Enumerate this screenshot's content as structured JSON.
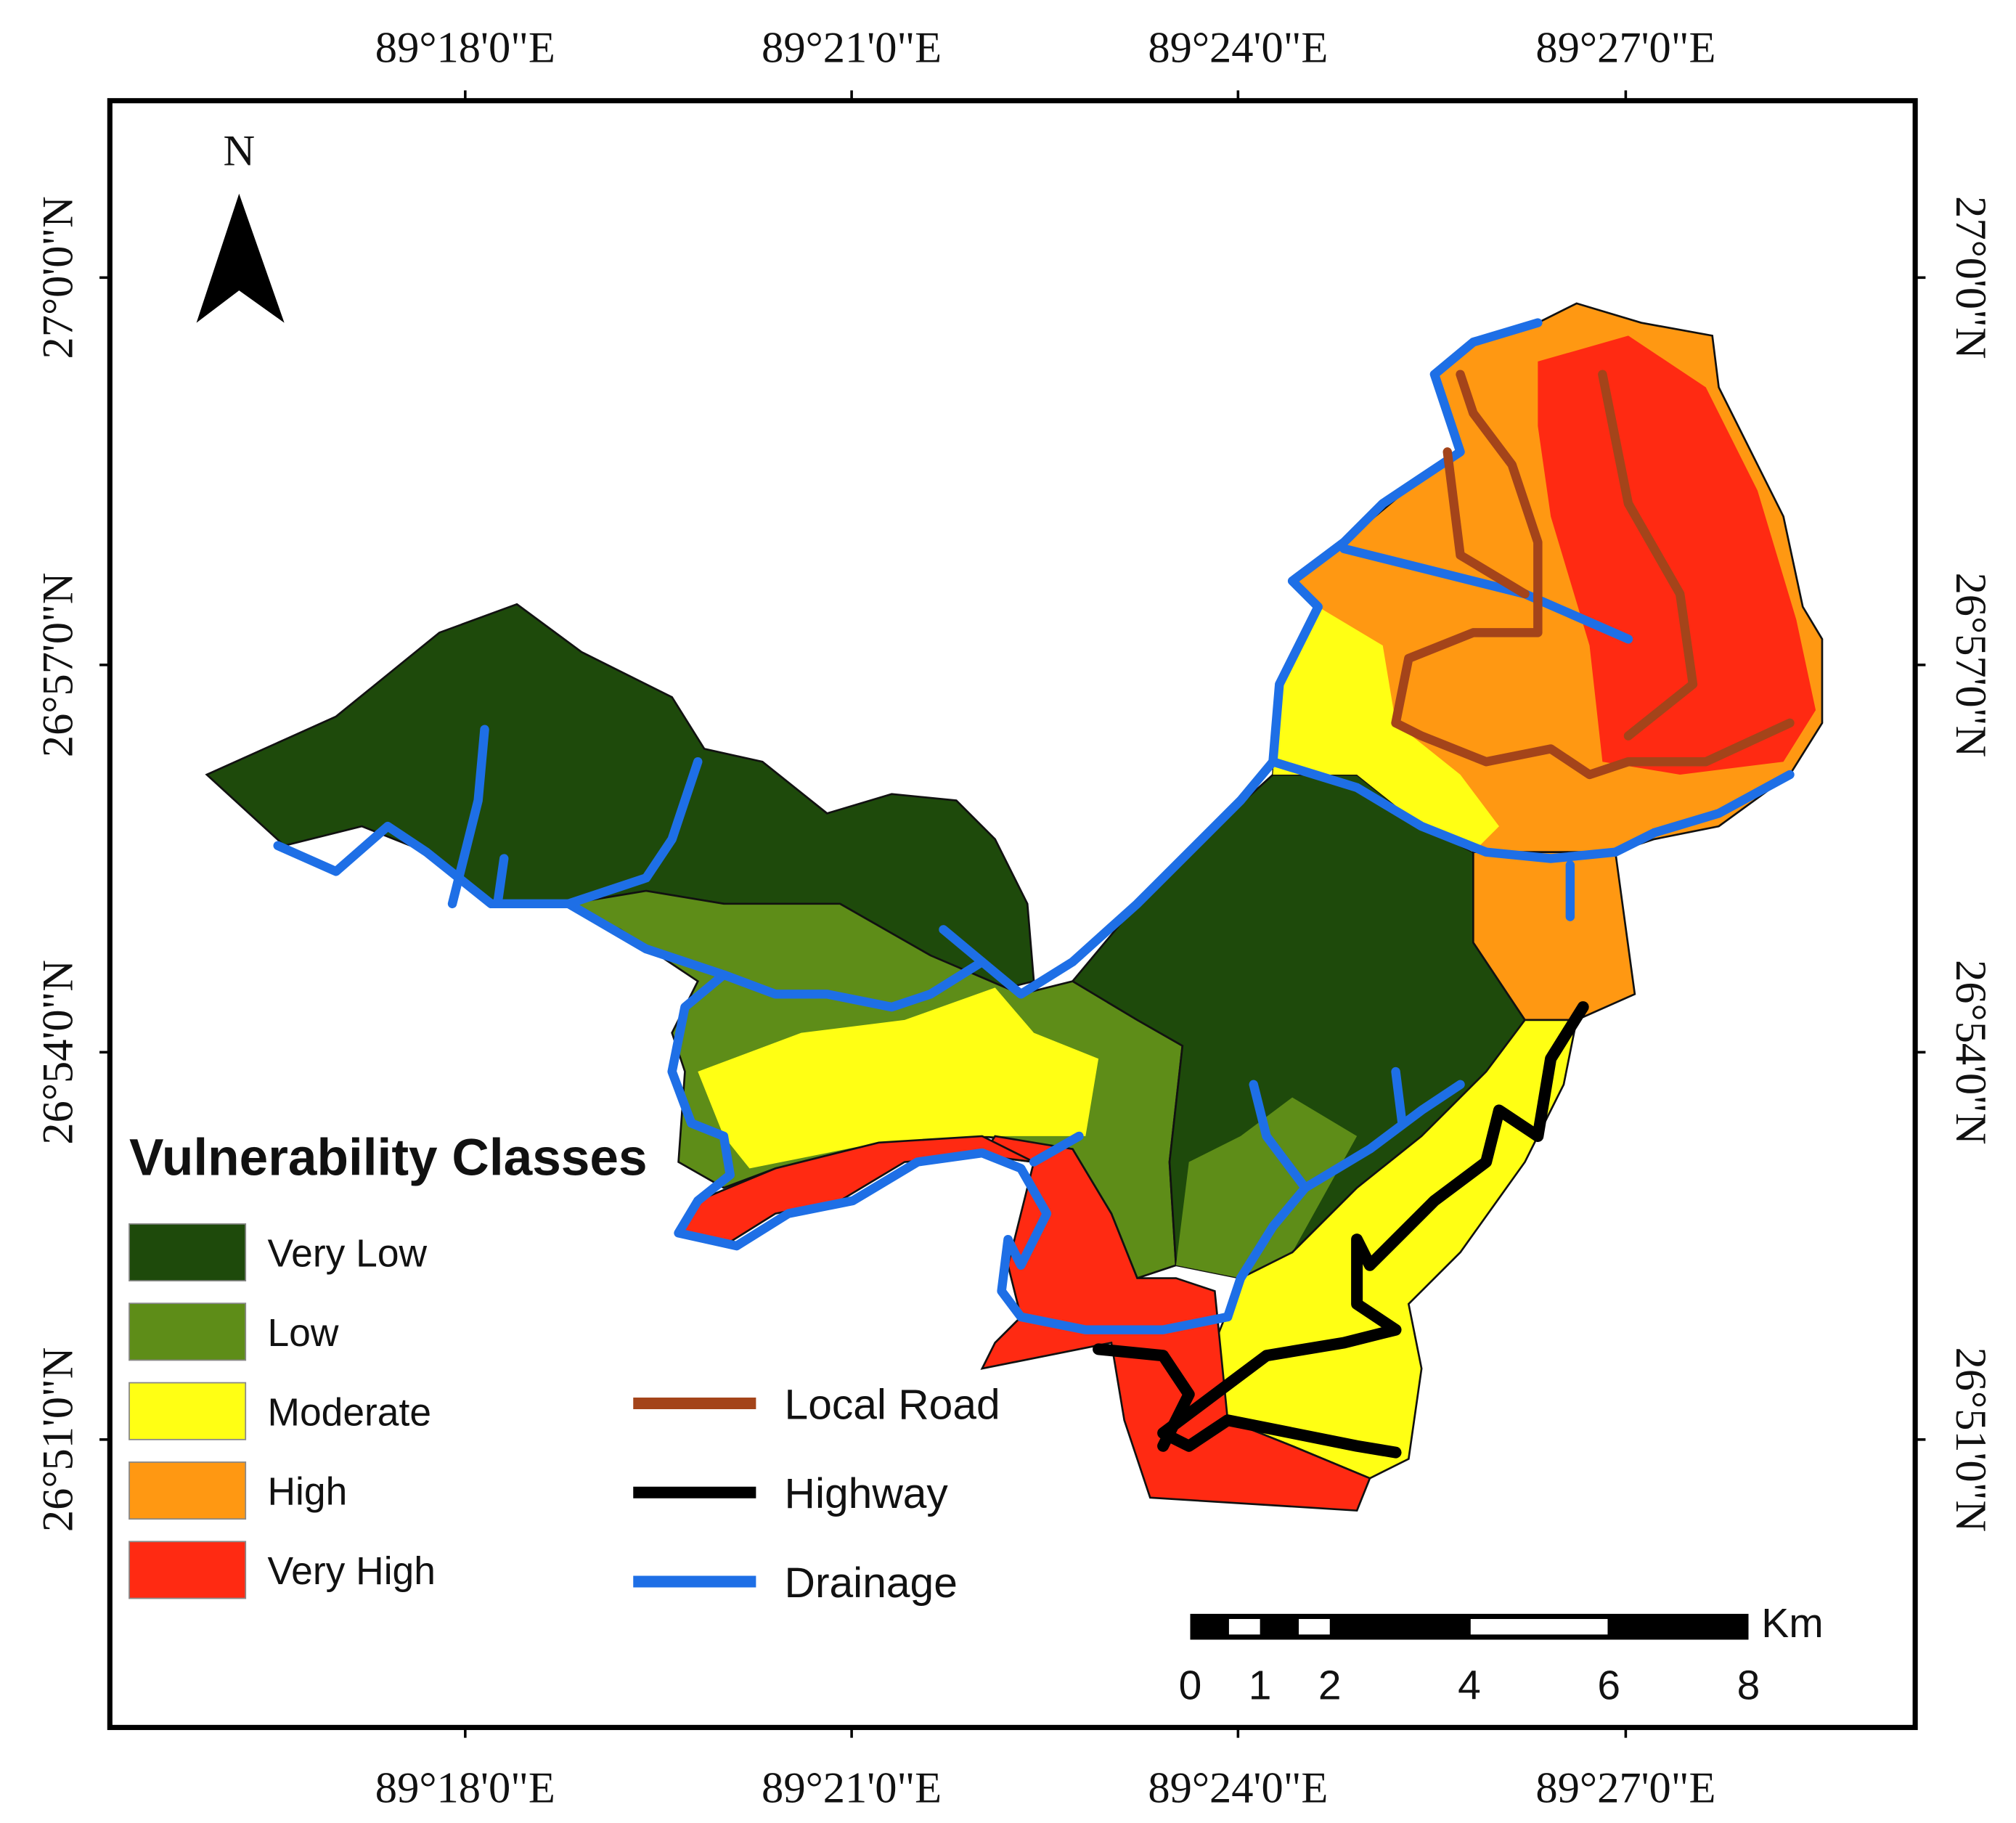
{
  "map": {
    "north_label": "N",
    "x_axis_labels": [
      "89°18'0\"E",
      "89°21'0\"E",
      "89°24'0\"E",
      "89°27'0\"E"
    ],
    "y_axis_labels": [
      "27°0'0\"N",
      "26°57'0\"N",
      "26°54'0\"N",
      "26°51'0\"N"
    ],
    "legend": {
      "title": "Vulnerability Classes",
      "classes": [
        {
          "label": "Very Low",
          "color": "#1e4a0b"
        },
        {
          "label": "Low",
          "color": "#5e8d18"
        },
        {
          "label": "Moderate",
          "color": "#ffff14"
        },
        {
          "label": "High",
          "color": "#ff9812"
        },
        {
          "label": "Very High",
          "color": "#ff2a12"
        }
      ]
    },
    "line_legend": [
      {
        "label": "Local Road",
        "color": "#a4441a"
      },
      {
        "label": "Highway",
        "color": "#000000"
      },
      {
        "label": "Drainage",
        "color": "#1e6fe6"
      }
    ],
    "scale_bar": {
      "unit": "Km",
      "ticks": [
        0,
        1,
        2,
        4,
        6,
        8
      ]
    }
  }
}
